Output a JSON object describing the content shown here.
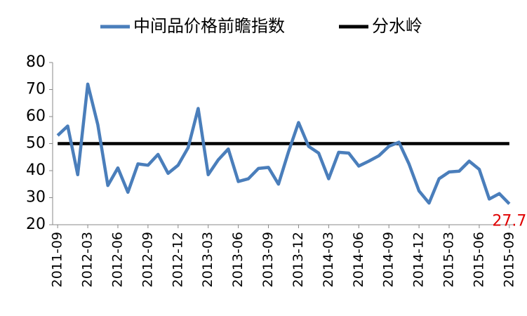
{
  "chart_data": {
    "type": "line",
    "categories": [
      "2011-09",
      null,
      null,
      "2012-03",
      null,
      null,
      "2012-06",
      null,
      null,
      "2012-09",
      null,
      null,
      "2012-12",
      null,
      null,
      "2013-03",
      null,
      null,
      "2013-06",
      null,
      null,
      "2013-09",
      null,
      null,
      "2013-12",
      null,
      null,
      "2014-03",
      null,
      null,
      "2014-06",
      null,
      null,
      "2014-09",
      null,
      null,
      "2014-12",
      null,
      null,
      "2015-03",
      null,
      null,
      "2015-06",
      null,
      null,
      "2015-09"
    ],
    "series": [
      {
        "name": "中间品价格前瞻指数",
        "color": "#4a7ebb",
        "values": [
          53,
          56.5,
          38.5,
          72,
          57,
          34.5,
          41,
          32,
          42.5,
          42,
          46,
          39,
          42,
          48.5,
          63,
          38.5,
          44,
          48,
          36,
          37,
          40.8,
          41.2,
          35,
          47,
          57.8,
          49,
          46.5,
          37,
          46.8,
          46.5,
          41.7,
          43.5,
          45.5,
          49,
          50.5,
          42.5,
          32.5,
          28,
          37,
          39.5,
          39.8,
          43.5,
          40.5,
          29.5,
          31.5,
          27.7
        ]
      },
      {
        "name": "分水岭",
        "color": "#000000",
        "values": [
          50,
          50,
          50,
          50,
          50,
          50,
          50,
          50,
          50,
          50,
          50,
          50,
          50,
          50,
          50,
          50,
          50,
          50,
          50,
          50,
          50,
          50,
          50,
          50,
          50,
          50,
          50,
          50,
          50,
          50,
          50,
          50,
          50,
          50,
          50,
          50,
          50,
          50,
          50,
          50,
          50,
          50,
          50,
          50,
          50,
          50
        ]
      }
    ],
    "ylim": [
      20,
      80
    ],
    "yticks": [
      20,
      30,
      40,
      50,
      60,
      70,
      80
    ],
    "legend": "top"
  }
}
